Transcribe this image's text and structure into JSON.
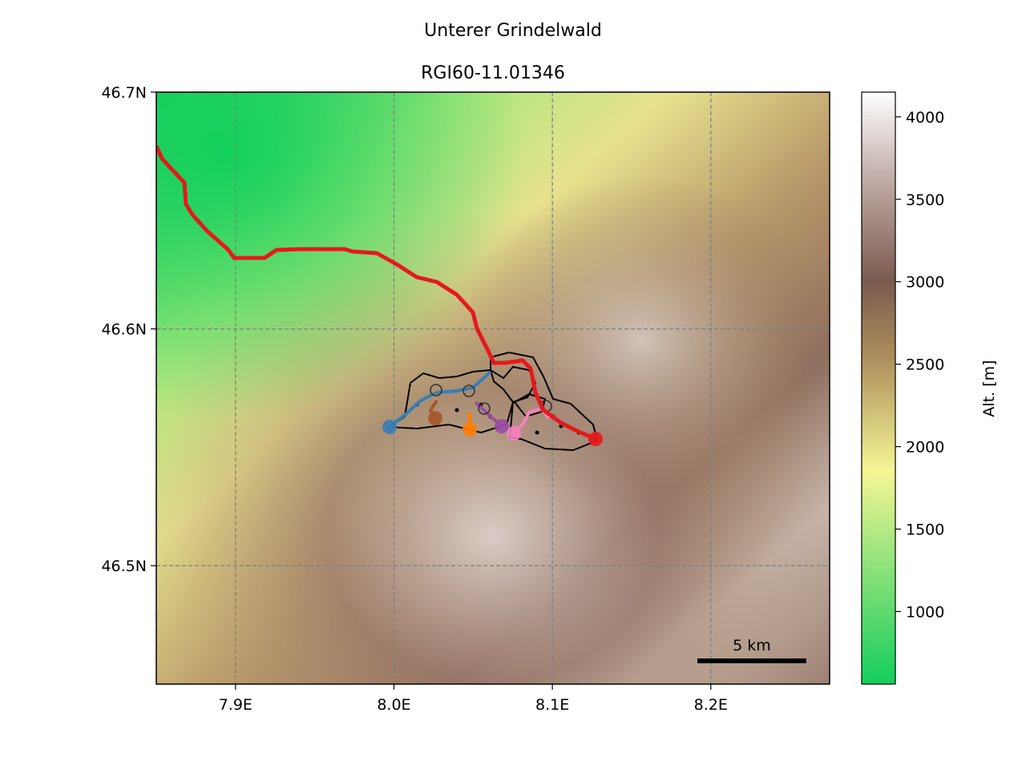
{
  "title": "Unterer Grindelwald",
  "subtitle": "RGI60-11.01346",
  "map": {
    "x_ticks": [
      {
        "value": 7.9,
        "label": "7.9E"
      },
      {
        "value": 8.0,
        "label": "8.0E"
      },
      {
        "value": 8.1,
        "label": "8.1E"
      },
      {
        "value": 8.2,
        "label": "8.2E"
      }
    ],
    "y_ticks": [
      {
        "value": 46.7,
        "label": "46.7N"
      },
      {
        "value": 46.6,
        "label": "46.6N"
      },
      {
        "value": 46.5,
        "label": "46.5N"
      }
    ],
    "lon_range": [
      7.85,
      8.275
    ],
    "lat_range": [
      46.45,
      46.7
    ],
    "grid": true,
    "scale_bar_label": "5 km",
    "colors": {
      "main_flowline": "#e41a1c",
      "tributary_blue": "#377eb8",
      "tributary_brown": "#a65628",
      "tributary_orange": "#ff7f00",
      "tributary_purple": "#984ea3",
      "tributary_pink": "#f781bf",
      "outline": "#000000",
      "grid": "#808080"
    }
  },
  "colorbar": {
    "label": "Alt. [m]",
    "range": [
      560,
      4150
    ],
    "ticks": [
      {
        "value": 1000,
        "label": "1000"
      },
      {
        "value": 1500,
        "label": "1500"
      },
      {
        "value": 2000,
        "label": "2000"
      },
      {
        "value": 2500,
        "label": "2500"
      },
      {
        "value": 3000,
        "label": "3000"
      },
      {
        "value": 3500,
        "label": "3500"
      },
      {
        "value": 4000,
        "label": "4000"
      }
    ]
  }
}
